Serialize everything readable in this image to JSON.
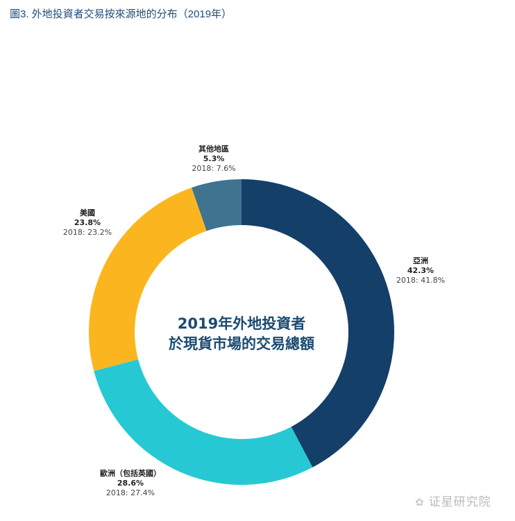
{
  "title": "圖3. 外地投資者交易按來源地的分布（2019年）",
  "chart_data": {
    "type": "pie",
    "donut": true,
    "title": "圖3. 外地投資者交易按來源地的分布（2019年）",
    "center_text": [
      "2019年外地投資者",
      "於現貨市場的交易總額"
    ],
    "slices": [
      {
        "label": "亞洲",
        "value": 42.3,
        "value_text": "42.3%",
        "prev_text": "2018: 41.8%",
        "color": "#143f68"
      },
      {
        "label": "歐洲（包括英國）",
        "value": 28.6,
        "value_text": "28.6%",
        "prev_text": "2018: 27.4%",
        "color": "#26c9d3"
      },
      {
        "label": "美國",
        "value": 23.8,
        "value_text": "23.8%",
        "prev_text": "2018: 23.2%",
        "color": "#fbb61f"
      },
      {
        "label": "其他地區",
        "value": 5.3,
        "value_text": "5.3%",
        "prev_text": "2018: 7.6%",
        "color": "#3f738f"
      }
    ]
  },
  "watermark": "证星研究院"
}
